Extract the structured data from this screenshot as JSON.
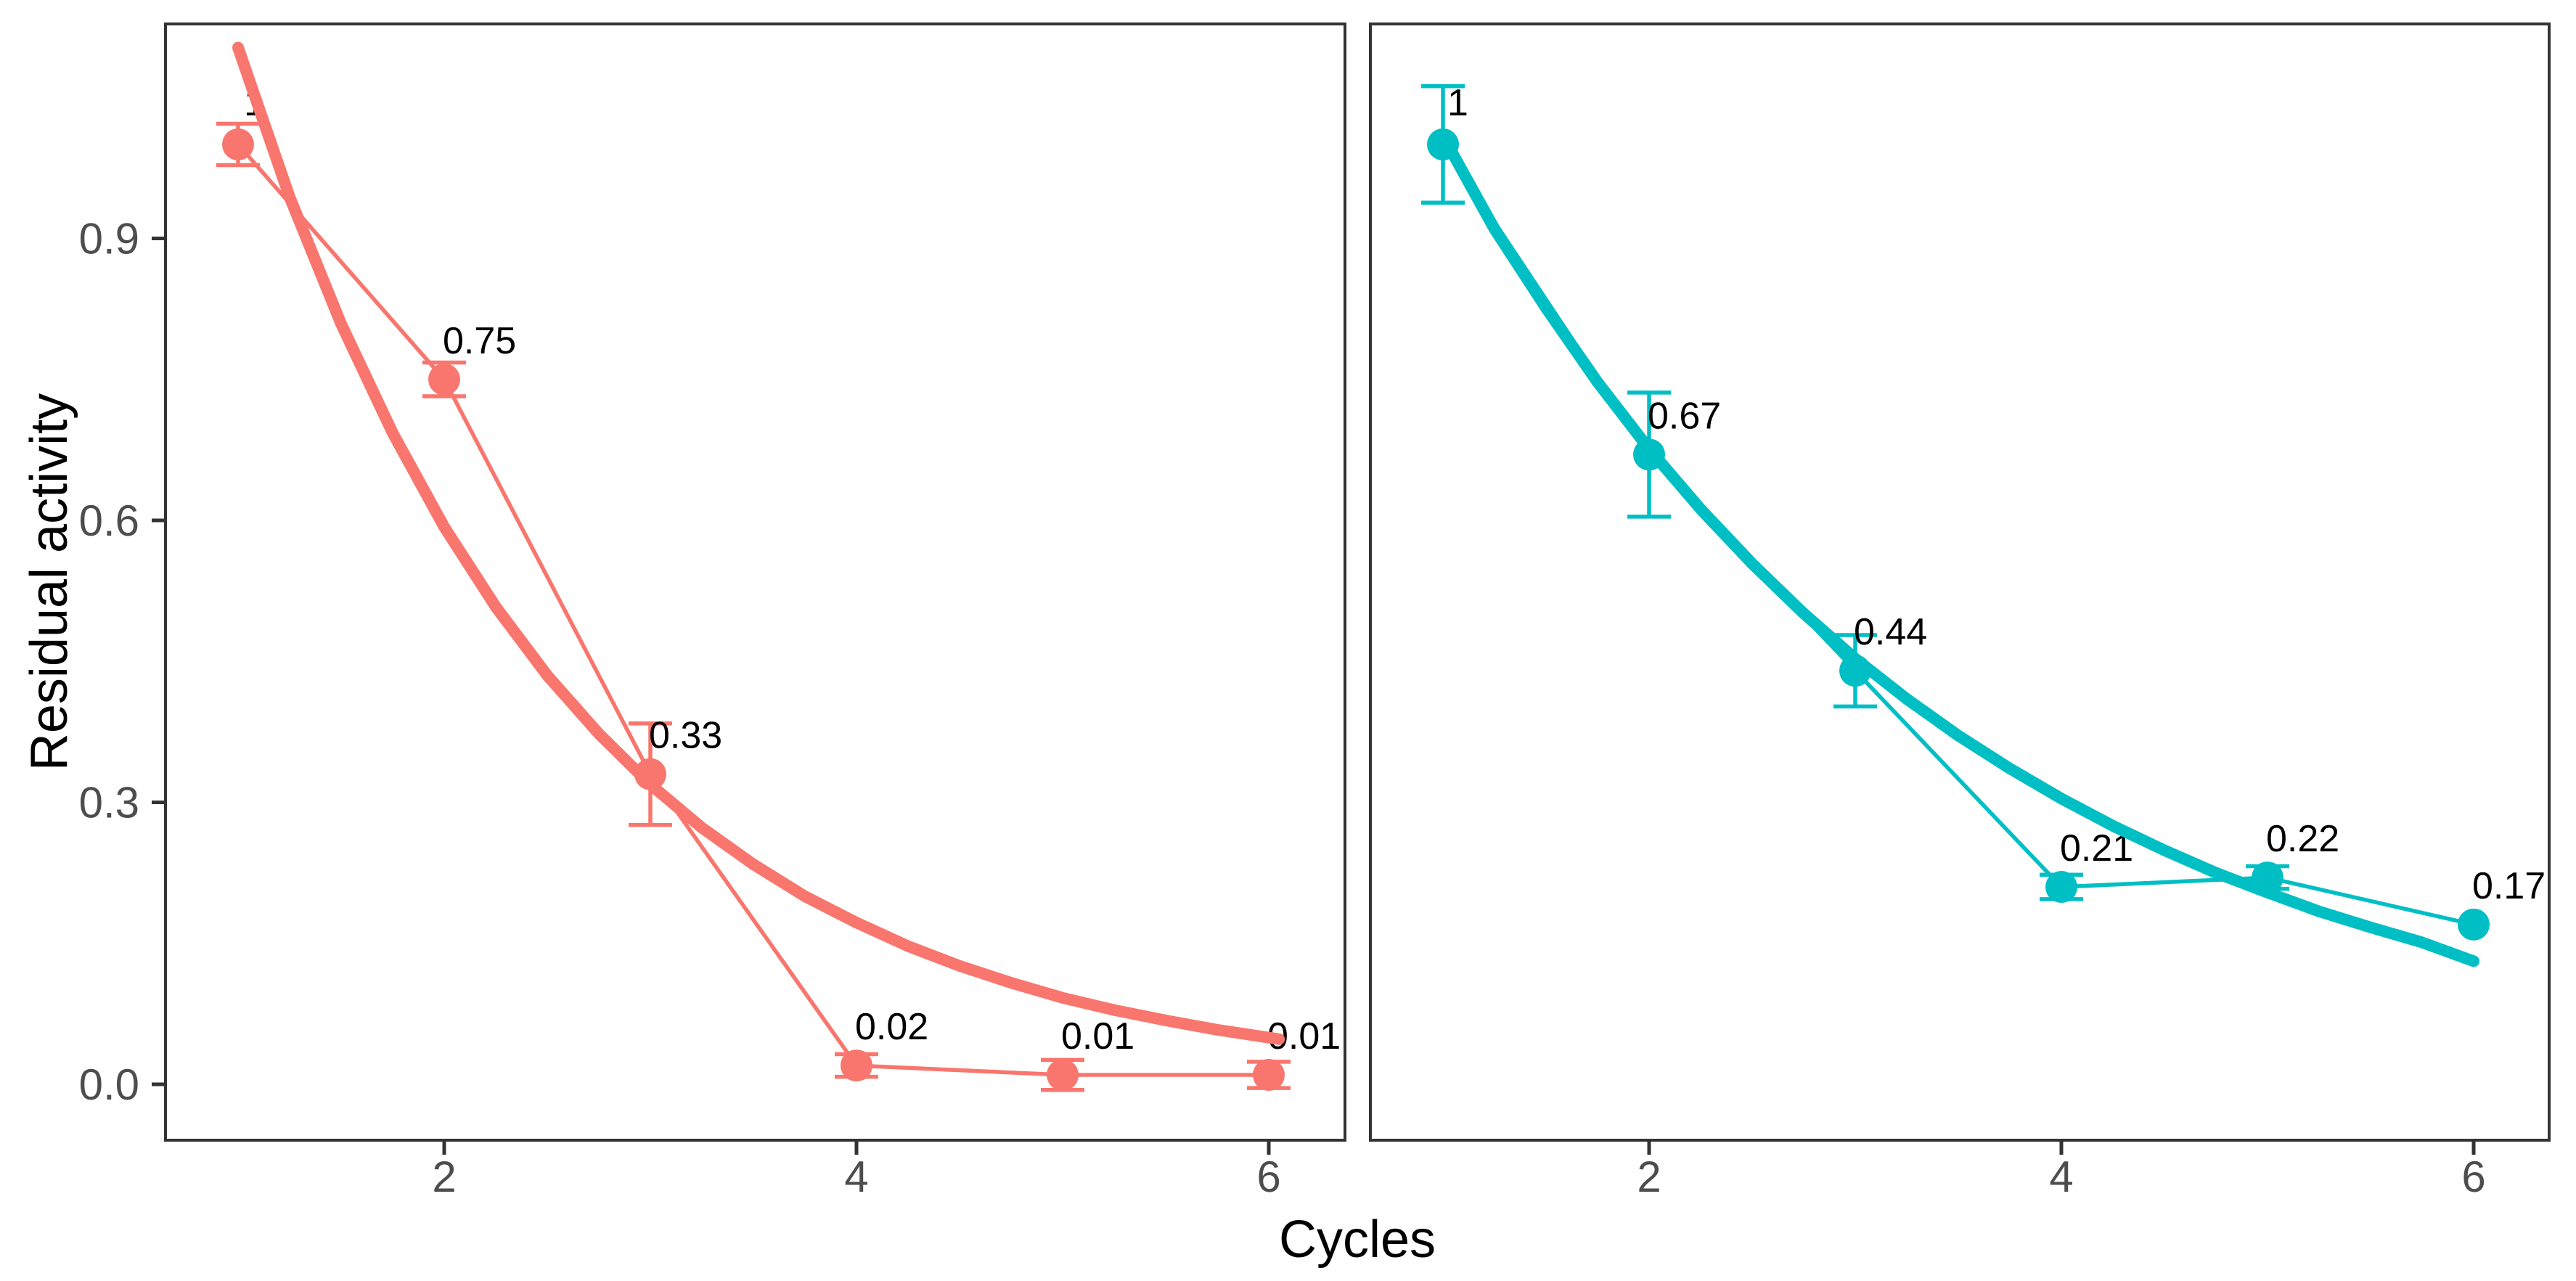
{
  "axes": {
    "x_title": "Cycles",
    "y_title": "Residual activity",
    "x_ticks": {
      "values": [
        2,
        4,
        6
      ],
      "labels": [
        "2",
        "4",
        "6"
      ]
    },
    "y_ticks": {
      "values": [
        0.0,
        0.3,
        0.6,
        0.9
      ],
      "labels": [
        "0.0",
        "0.3",
        "0.6",
        "0.9"
      ]
    },
    "tick_label_color": "#4D4D4D",
    "axis_title_color": "#000000",
    "panel_border_color": "#333333",
    "background": "#FFFFFF"
  },
  "chart_data": [
    {
      "type": "scatter",
      "name": "left",
      "color": "#F8766D",
      "x": [
        1,
        2,
        3,
        4,
        5,
        6
      ],
      "values": [
        1.0,
        0.75,
        0.33,
        0.02,
        0.01,
        0.01
      ],
      "point_labels": [
        "1",
        "0.75",
        "0.33",
        "0.02",
        "0.01",
        "0.01"
      ],
      "yerr": [
        0.022,
        0.018,
        0.054,
        0.012,
        0.016,
        0.014
      ],
      "smooth": {
        "x": [
          1,
          1.25,
          1.5,
          1.75,
          2,
          2.25,
          2.5,
          2.75,
          3,
          3.25,
          3.5,
          3.75,
          4,
          4.25,
          4.5,
          4.75,
          5,
          5.25,
          5.5,
          5.75,
          6.05
        ],
        "values": [
          1.103,
          0.944,
          0.809,
          0.693,
          0.593,
          0.508,
          0.435,
          0.373,
          0.319,
          0.273,
          0.234,
          0.2,
          0.172,
          0.147,
          0.126,
          0.108,
          0.092,
          0.079,
          0.068,
          0.058,
          0.048
        ]
      },
      "xlabel": "Cycles",
      "ylabel": "Residual activity",
      "xlim": [
        0.65,
        6.35
      ],
      "ylim": [
        -0.06,
        1.13
      ],
      "grid": false,
      "legend": "none"
    },
    {
      "type": "scatter",
      "name": "right",
      "color": "#00BFC4",
      "x": [
        1,
        2,
        3,
        4,
        5,
        6
      ],
      "values": [
        1.0,
        0.67,
        0.44,
        0.21,
        0.22,
        0.17
      ],
      "point_labels": [
        "1",
        "0.67",
        "0.44",
        "0.21",
        "0.22",
        "0.17"
      ],
      "yerr": [
        0.062,
        0.066,
        0.038,
        0.013,
        0.012,
        0
      ],
      "smooth": {
        "x": [
          1,
          1.25,
          1.5,
          1.75,
          2,
          2.25,
          2.5,
          2.75,
          3,
          3.25,
          3.5,
          3.75,
          4,
          4.25,
          4.5,
          4.75,
          5,
          5.25,
          5.5,
          5.75,
          6
        ],
        "values": [
          1.009,
          0.91,
          0.826,
          0.747,
          0.676,
          0.612,
          0.554,
          0.501,
          0.453,
          0.41,
          0.371,
          0.336,
          0.304,
          0.275,
          0.249,
          0.225,
          0.204,
          0.184,
          0.167,
          0.151,
          0.131
        ]
      },
      "xlabel": "Cycles",
      "ylabel": "Residual activity",
      "xlim": [
        0.65,
        6.35
      ],
      "ylim": [
        -0.06,
        1.13
      ],
      "grid": false,
      "legend": "none"
    }
  ]
}
